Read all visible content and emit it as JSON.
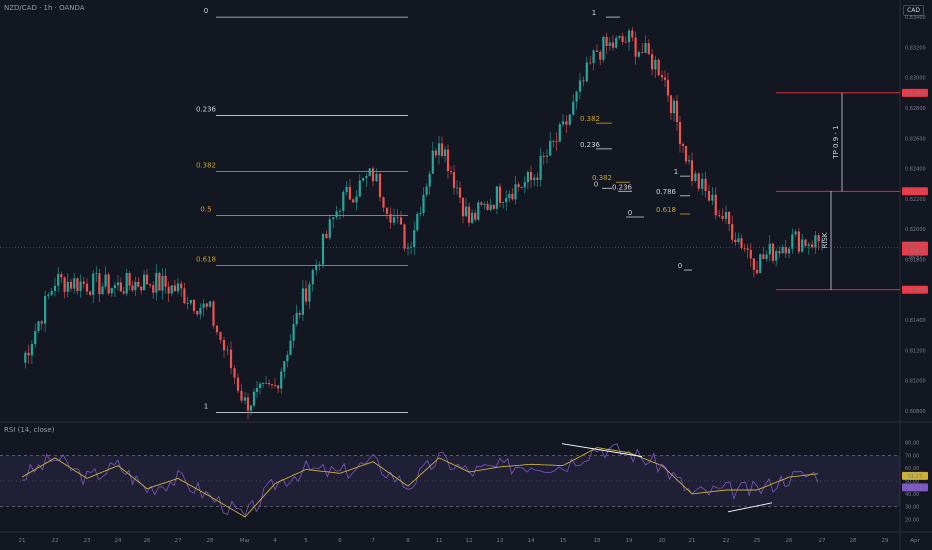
{
  "header": {
    "symbol_line": "NZD/CAD · 1h · OANDA",
    "currency_button": "CAD"
  },
  "rsi_title": "RSI (14, close)",
  "colors": {
    "up": "#26a69a",
    "down": "#ef5350",
    "gold": "#c9a227",
    "orange": "#e0a43a",
    "white": "#d1d4dc",
    "red_level": "#f23645"
  },
  "chart_data": [
    {
      "type": "line",
      "title": "NZD/CAD · 1h · OANDA",
      "xlabel": "",
      "ylabel": "",
      "ylim": [
        0.8074,
        0.8346
      ],
      "y_ticks": [
        "0.83400",
        "0.83200",
        "0.83000",
        "0.82800",
        "0.82600",
        "0.82400",
        "0.82200",
        "0.82000",
        "0.81800",
        "0.81600",
        "0.81400",
        "0.81200",
        "0.81000",
        "0.80800"
      ],
      "x_ticks": [
        "21",
        "22",
        "23",
        "24",
        "26",
        "27",
        "28",
        "Mar",
        "4",
        "5",
        "6",
        "7",
        "8",
        "11",
        "12",
        "13",
        "14",
        "15",
        "18",
        "19",
        "20",
        "21",
        "22",
        "25",
        "26",
        "27",
        "28",
        "29",
        "Apr"
      ],
      "series": [
        {
          "x": [
            "21",
            "22",
            "23",
            "24",
            "26",
            "27",
            "28",
            "Mar",
            "4",
            "5",
            "6",
            "7",
            "8",
            "11",
            "12",
            "13",
            "14",
            "15",
            "18",
            "19",
            "20",
            "21",
            "22",
            "25",
            "26",
            "27"
          ],
          "values": [
            0.8112,
            0.8166,
            0.8164,
            0.8162,
            0.8166,
            0.816,
            0.8145,
            0.8085,
            0.8096,
            0.816,
            0.8218,
            0.8236,
            0.8188,
            0.8262,
            0.8205,
            0.8224,
            0.8232,
            0.8265,
            0.8318,
            0.8325,
            0.8305,
            0.8236,
            0.8205,
            0.8178,
            0.8193,
            0.8192
          ]
        }
      ],
      "price_labels": [
        {
          "value": 0.829,
          "text": "0.82900"
        },
        {
          "value": 0.8225,
          "text": "0.82250"
        },
        {
          "value": 0.816,
          "text": "0.81600"
        }
      ],
      "current_price": {
        "symbol": "NZDCAD",
        "price": "0.81878",
        "countdown": "16:57"
      },
      "fib_main": [
        {
          "label": "0",
          "value": 0.834
        },
        {
          "label": "0.236",
          "value": 0.8275
        },
        {
          "label": "0.382",
          "value": 0.8238
        },
        {
          "label": "0.5",
          "value": 0.8209
        },
        {
          "label": "0.618",
          "value": 0.8176
        },
        {
          "label": "1",
          "value": 0.8079
        }
      ],
      "fib_minor": [
        {
          "label": "1",
          "value": 0.834
        },
        {
          "label": "0.382",
          "value": 0.827
        },
        {
          "label": "0.236",
          "value": 0.8253
        },
        {
          "label": "0.382",
          "value": 0.8231
        },
        {
          "label": "0",
          "value": 0.8227
        },
        {
          "label": "0.236",
          "value": 0.8225
        },
        {
          "label": "0",
          "value": 0.8208
        },
        {
          "label": "1",
          "value": 0.8235
        },
        {
          "label": "0.786",
          "value": 0.8222
        },
        {
          "label": "0.618",
          "value": 0.821
        },
        {
          "label": "0",
          "value": 0.8173
        }
      ],
      "annotations": [
        "TP 0.9 - 1",
        "RISK"
      ]
    },
    {
      "type": "line",
      "title": "RSI (14, close)",
      "xlabel": "",
      "ylabel": "",
      "ylim": [
        15,
        85
      ],
      "y_ticks": [
        "80.00",
        "70.00",
        "60.00",
        "50.00",
        "40.00",
        "30.00",
        "20.00"
      ],
      "bands": [
        30,
        70
      ],
      "series": [
        {
          "name": "RSI",
          "value_label": "51.23"
        },
        {
          "name": "RSI MA",
          "value_label": "45.57"
        }
      ],
      "x": [
        "21",
        "22",
        "23",
        "24",
        "26",
        "27",
        "28",
        "Mar",
        "4",
        "5",
        "6",
        "7",
        "8",
        "11",
        "12",
        "13",
        "14",
        "15",
        "18",
        "19",
        "20",
        "21",
        "22",
        "25",
        "26",
        "27"
      ],
      "values": [
        53,
        68,
        52,
        62,
        44,
        52,
        38,
        22,
        48,
        59,
        56,
        65,
        46,
        68,
        57,
        61,
        63,
        62,
        76,
        72,
        62,
        40,
        43,
        43,
        53,
        56
      ]
    }
  ]
}
